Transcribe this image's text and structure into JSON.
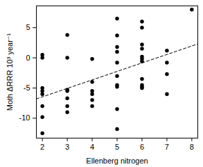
{
  "chart_data": {
    "type": "scatter",
    "x_label": "Ellenberg nitrogen",
    "y_label": "Moth ΔRRR 10³ year⁻¹",
    "xlim": [
      1.76,
      8.24
    ],
    "ylim": [
      -13.3,
      8.6
    ],
    "xticks": [
      2,
      3,
      4,
      5,
      6,
      7,
      8
    ],
    "yticks": [
      -10,
      -5,
      0,
      5
    ],
    "grid": false,
    "series": [
      {
        "type": "scatter",
        "color": "#000000",
        "marker": "circle",
        "x": [
          2,
          2,
          2,
          2,
          2,
          2,
          2,
          2,
          3,
          3,
          3,
          3,
          3,
          3,
          3,
          4,
          4,
          4,
          4,
          4,
          4,
          5,
          5,
          5,
          5,
          5,
          5,
          5,
          5,
          5,
          5,
          6,
          6,
          6,
          6,
          6,
          6,
          6,
          6,
          6,
          6,
          6,
          7,
          7,
          7,
          7,
          8
        ],
        "values": [
          0.5,
          0,
          -5,
          -5.5,
          -6,
          -8,
          -9.8,
          -12.5,
          3.8,
          0,
          -5.3,
          -5.5,
          -6.7,
          -8,
          -9,
          -0.2,
          -4,
          -5.5,
          -6,
          -7,
          -8,
          6.5,
          3.7,
          1.8,
          1,
          -0.8,
          -3,
          -4.5,
          -4.8,
          -8.5,
          -11.8,
          6,
          5,
          2.2,
          1.5,
          0.2,
          -0.2,
          -0.6,
          -3.5,
          -4.5,
          -4.8,
          -5,
          1.2,
          -0.8,
          -2.7,
          -6,
          8
        ]
      },
      {
        "type": "line",
        "color": "#000000",
        "line_style": "dashed",
        "x": [
          1.76,
          8.24
        ],
        "values": [
          -6.8,
          2.3
        ]
      }
    ]
  }
}
